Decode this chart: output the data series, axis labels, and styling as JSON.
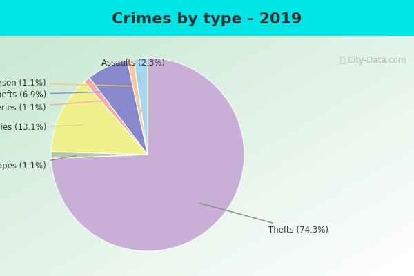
{
  "title": "Crimes by type - 2019",
  "title_fontsize": 16,
  "title_color": "#333333",
  "slices": [
    {
      "label": "Thefts",
      "pct": 74.3,
      "color": "#c9afd6"
    },
    {
      "label": "Rapes",
      "pct": 1.1,
      "color": "#b8c9a8"
    },
    {
      "label": "Burglaries",
      "pct": 13.1,
      "color": "#f0f08a"
    },
    {
      "label": "Robberies",
      "pct": 1.1,
      "color": "#f4aaaa"
    },
    {
      "label": "Auto thefts",
      "pct": 6.9,
      "color": "#8888cc"
    },
    {
      "label": "Arson",
      "pct": 1.1,
      "color": "#f5c89a"
    },
    {
      "label": "Assaults",
      "pct": 2.3,
      "color": "#a8d8ee"
    }
  ],
  "bg_cyan": "#00e5e5",
  "label_fontsize": 8.5,
  "watermark": "@City-Data.com"
}
